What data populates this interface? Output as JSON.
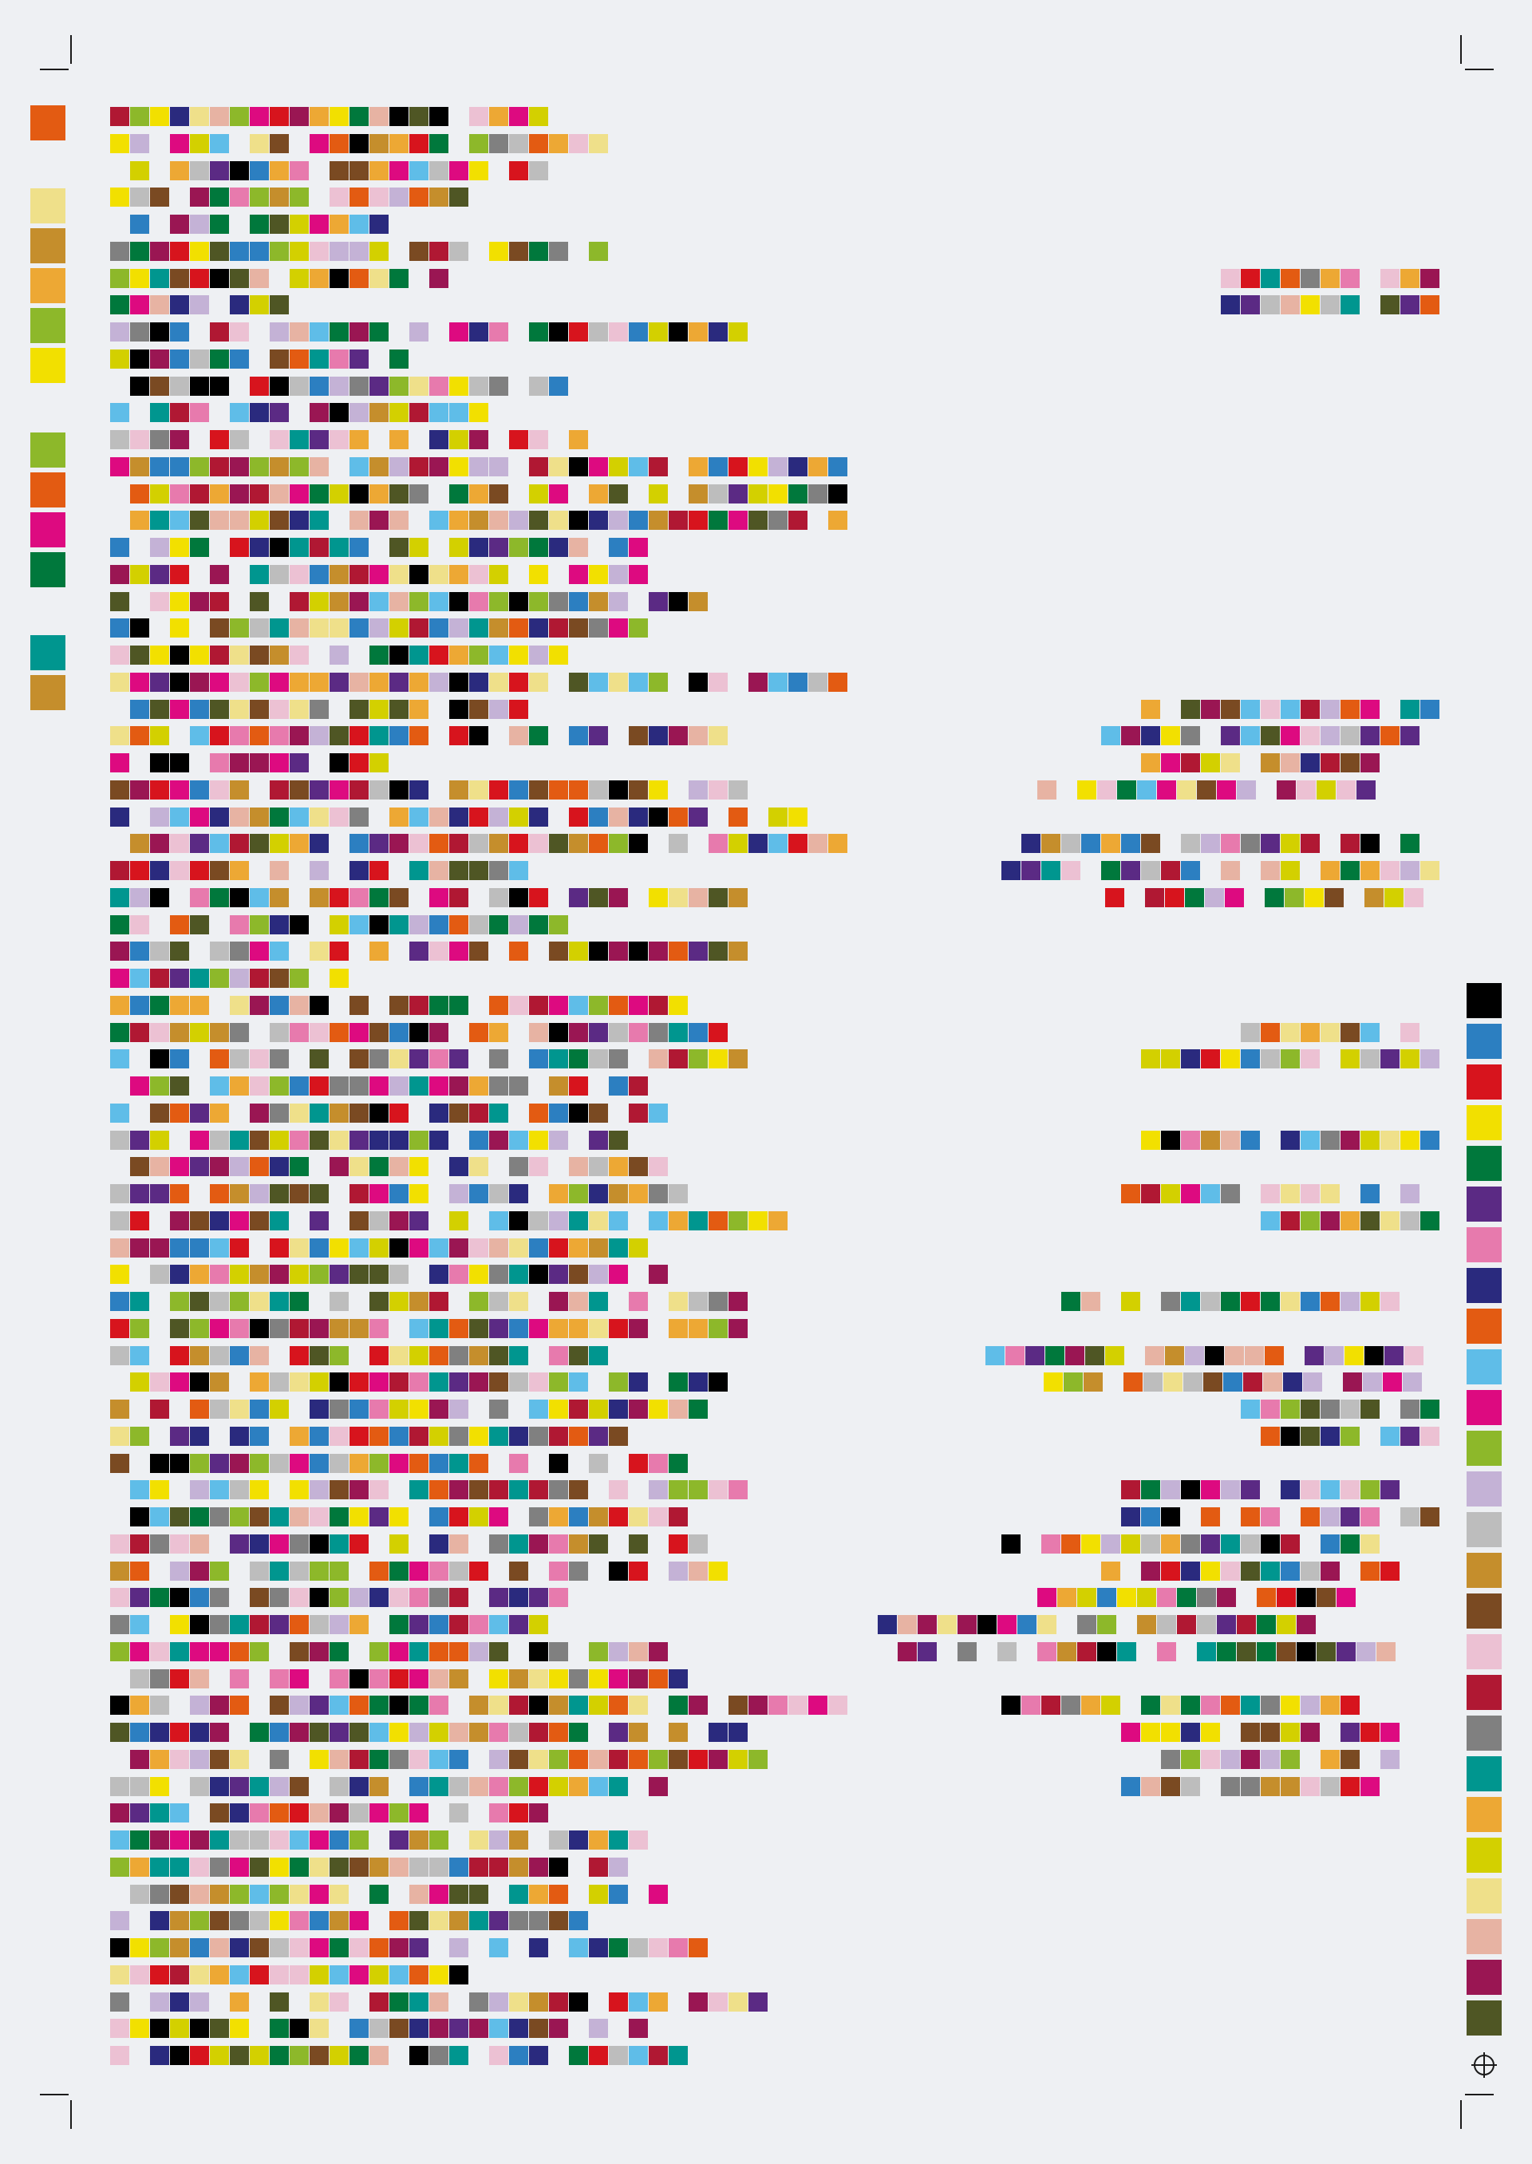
{
  "palette": [
    "#000000",
    "#2c7fc1",
    "#d7141d",
    "#f2e000",
    "#00783c",
    "#5b2a84",
    "#e77aad",
    "#2a2a7e",
    "#e35b12",
    "#5fbde8",
    "#dd0a80",
    "#8db82a",
    "#c4b2d6",
    "#bdbdbd",
    "#c58e2c",
    "#7a4a22",
    "#ecc1d3",
    "#b01833",
    "#808080",
    "#00968f",
    "#eda834",
    "#d3d000",
    "#efe08a",
    "#e7b3a3",
    "#9a1653",
    "#4f5624"
  ],
  "left_key": [
    "#e35b12",
    "#efe08a",
    "#c58e2c",
    "#eda834",
    "#8db82a",
    "#f2e000",
    "#8db82a",
    "#e35b12",
    "#dd0a80",
    "#00783c",
    "#00968f",
    "#c58e2c"
  ],
  "row_count": 73
}
